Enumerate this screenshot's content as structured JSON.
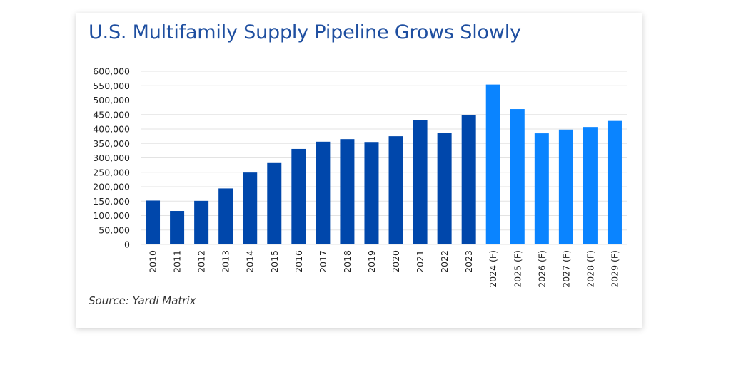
{
  "chart_data": {
    "type": "bar",
    "title": "U.S. Multifamily Supply Pipeline Grows Slowly",
    "source": "Source: Yardi Matrix",
    "categories": [
      "2010",
      "2011",
      "2012",
      "2013",
      "2014",
      "2015",
      "2016",
      "2017",
      "2018",
      "2019",
      "2020",
      "2021",
      "2022",
      "2023",
      "2024 (F)",
      "2025 (F)",
      "2026 (F)",
      "2027 (F)",
      "2028 (F)",
      "2029 (F)"
    ],
    "values": [
      152000,
      116000,
      151000,
      194000,
      249000,
      282000,
      331000,
      356000,
      365000,
      355000,
      375000,
      430000,
      387000,
      449000,
      554000,
      469000,
      385000,
      398000,
      407000,
      428000
    ],
    "ylim": [
      0,
      600000
    ],
    "yticks": [
      "0",
      "50,000",
      "100,000",
      "150,000",
      "200,000",
      "250,000",
      "300,000",
      "350,000",
      "400,000",
      "450,000",
      "500,000",
      "550,000",
      "600,000"
    ],
    "ytick_values": [
      0,
      50000,
      100000,
      150000,
      200000,
      250000,
      300000,
      350000,
      400000,
      450000,
      500000,
      550000,
      600000
    ],
    "grid": true,
    "colors": {
      "actual": "#0047ab",
      "forecast": "#0a84ff",
      "grid": "#e3e3e3"
    }
  }
}
